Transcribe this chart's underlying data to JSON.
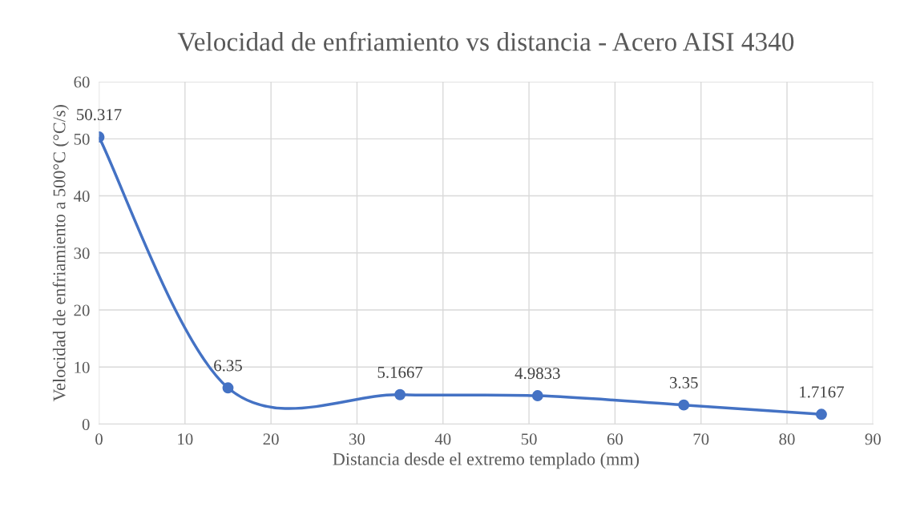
{
  "chart_data": {
    "type": "line",
    "title": "Velocidad de enfriamiento vs distancia - Acero AISI 4340",
    "xlabel": "Distancia desde el extremo templado (mm)",
    "ylabel": "Velocidad de enfriamiento a 500°C (°C/s)",
    "x": [
      0,
      15,
      35,
      51,
      68,
      84
    ],
    "series": [
      {
        "color": "#4472c4",
        "values": [
          50.317,
          6.35,
          5.1667,
          4.9833,
          3.35,
          1.7167
        ]
      }
    ],
    "xlim": [
      0,
      90
    ],
    "xticks": [
      0,
      10,
      20,
      30,
      40,
      50,
      60,
      70,
      80,
      90
    ],
    "ylim": [
      0,
      60
    ],
    "yticks": [
      0,
      10,
      20,
      30,
      40,
      50,
      60
    ],
    "grid": true,
    "marker": "circle",
    "line_style": "solid",
    "data_labels": true
  }
}
